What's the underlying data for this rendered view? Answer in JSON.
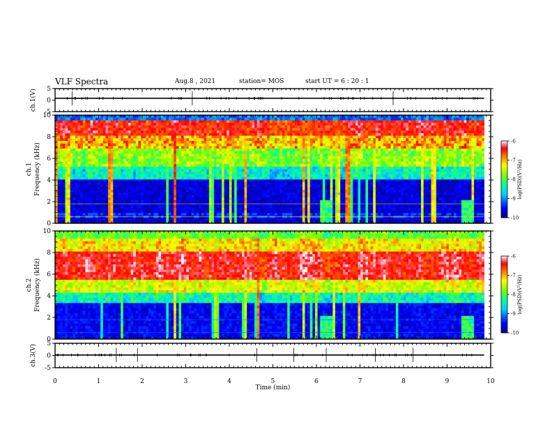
{
  "header": {
    "title": "VLF Spectra",
    "date": "Aug.8 , 2021",
    "station": "station= MOS",
    "start": "start UT = 6 : 20 : 1"
  },
  "chart_data": [
    {
      "type": "line",
      "name_label": "ch.1(V)",
      "ylabel": "ch.1(V)",
      "xlim": [
        0,
        10
      ],
      "ylim": [
        -5,
        5
      ],
      "yticks": [
        "5",
        "0",
        "-5"
      ],
      "series": [
        {
          "values_const": 0.8
        }
      ]
    },
    {
      "type": "heatmap",
      "ylabel": "ch.1 Frequency (kHz)",
      "ylabel_ch": "ch.1",
      "ylabel_freq": "Frequency (kHz)",
      "xlim": [
        0,
        10
      ],
      "ylim": [
        0,
        10
      ],
      "yticks": [
        "0",
        "2",
        "4",
        "6",
        "8",
        "10"
      ],
      "data_end_min": 9.85,
      "colorbar": {
        "label": "log(PSD)(V²/Hz)",
        "range": [
          -10,
          -6
        ],
        "ticks": [
          "-6",
          "-7",
          "-8",
          "-9",
          "-10"
        ]
      }
    },
    {
      "type": "heatmap",
      "ylabel": "ch.2 Frequency (kHz)",
      "ylabel_ch": "ch.2",
      "ylabel_freq": "Frequency (kHz)",
      "xlim": [
        0,
        10
      ],
      "ylim": [
        0,
        10
      ],
      "yticks": [
        "0",
        "2",
        "4",
        "6",
        "8",
        "10"
      ],
      "data_end_min": 9.85,
      "colorbar": {
        "label": "log(PSD)(V²/Hz)",
        "range": [
          -10,
          -6
        ],
        "ticks": [
          "-6",
          "-7",
          "-8",
          "-9",
          "-10"
        ]
      }
    },
    {
      "type": "line",
      "ylabel": "ch.3(V)",
      "xlim": [
        0,
        10
      ],
      "ylim": [
        -5,
        5
      ],
      "yticks": [
        "5",
        "0",
        "-5"
      ],
      "series": [
        {
          "values_const": 0.2
        }
      ]
    }
  ],
  "xaxis": {
    "label": "Time (min)",
    "ticks": [
      "0",
      "1",
      "2",
      "3",
      "4",
      "5",
      "6",
      "7",
      "8",
      "9",
      "10"
    ]
  },
  "colors": {
    "jet_low": "#00008f",
    "jet_high": "#ffffff"
  }
}
